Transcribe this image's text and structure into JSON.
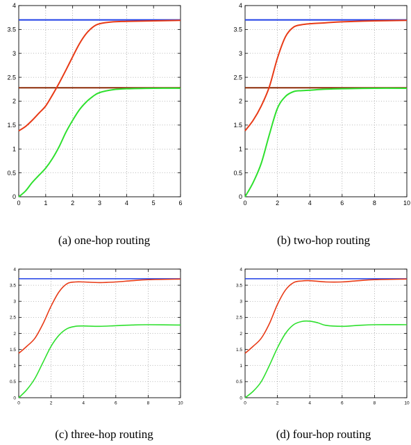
{
  "figure": {
    "captions": [
      "(a)  one-hop routing",
      "(b)  two-hop routing",
      "(c)  three-hop routing",
      "(d)  four-hop routing"
    ]
  },
  "colors": {
    "blue": "#1f3fe6",
    "red": "#e83a16",
    "green": "#2ee02e",
    "darkred": "#8b2a06"
  },
  "chart_data": [
    {
      "type": "line",
      "xlim": [
        0,
        6
      ],
      "ylim": [
        0,
        4
      ],
      "xticks": [
        "0",
        "1",
        "2",
        "3",
        "4",
        "5",
        "6"
      ],
      "yticks": [
        "0",
        "0.5",
        "1",
        "1.5",
        "2",
        "2.5",
        "3",
        "3.5",
        "4"
      ],
      "grid": true,
      "series": [
        {
          "color": "#1f3fe6",
          "x": [
            0,
            6
          ],
          "y": [
            3.7,
            3.7
          ]
        },
        {
          "color": "#8b2a06",
          "x": [
            0,
            6
          ],
          "y": [
            2.28,
            2.28
          ]
        },
        {
          "color": "#e83a16",
          "x": [
            0,
            0.25,
            0.5,
            0.75,
            1,
            1.25,
            1.5,
            1.75,
            2,
            2.25,
            2.5,
            2.75,
            3,
            3.5,
            4,
            5,
            6
          ],
          "y": [
            1.38,
            1.47,
            1.6,
            1.75,
            1.9,
            2.13,
            2.38,
            2.65,
            2.93,
            3.2,
            3.41,
            3.55,
            3.62,
            3.66,
            3.67,
            3.68,
            3.69
          ]
        },
        {
          "color": "#2ee02e",
          "x": [
            0,
            0.25,
            0.5,
            0.75,
            1,
            1.25,
            1.5,
            1.75,
            2,
            2.25,
            2.5,
            2.75,
            3,
            3.5,
            4,
            5,
            6
          ],
          "y": [
            0,
            0.12,
            0.3,
            0.45,
            0.6,
            0.8,
            1.05,
            1.35,
            1.6,
            1.82,
            1.98,
            2.1,
            2.18,
            2.24,
            2.26,
            2.27,
            2.27
          ]
        }
      ]
    },
    {
      "type": "line",
      "xlim": [
        0,
        10
      ],
      "ylim": [
        0,
        4
      ],
      "xticks": [
        "0",
        "2",
        "4",
        "6",
        "8",
        "10"
      ],
      "yticks": [
        "0",
        "0.5",
        "1",
        "1.5",
        "2",
        "2.5",
        "3",
        "3.5",
        "4"
      ],
      "grid": true,
      "series": [
        {
          "color": "#1f3fe6",
          "x": [
            0,
            10
          ],
          "y": [
            3.7,
            3.7
          ]
        },
        {
          "color": "#8b2a06",
          "x": [
            0,
            10
          ],
          "y": [
            2.28,
            2.28
          ]
        },
        {
          "color": "#e83a16",
          "x": [
            0,
            0.5,
            1,
            1.5,
            2,
            2.5,
            3,
            3.5,
            4,
            5,
            6,
            8,
            10
          ],
          "y": [
            1.38,
            1.6,
            1.9,
            2.3,
            2.9,
            3.35,
            3.55,
            3.6,
            3.62,
            3.64,
            3.66,
            3.68,
            3.69
          ]
        },
        {
          "color": "#2ee02e",
          "x": [
            0,
            0.5,
            1,
            1.5,
            2,
            2.5,
            3,
            3.5,
            4,
            5,
            6,
            8,
            10
          ],
          "y": [
            0,
            0.3,
            0.7,
            1.3,
            1.85,
            2.1,
            2.2,
            2.22,
            2.23,
            2.25,
            2.26,
            2.27,
            2.27
          ]
        }
      ]
    },
    {
      "type": "line",
      "xlim": [
        0,
        10
      ],
      "ylim": [
        0,
        4
      ],
      "xticks": [
        "0",
        "2",
        "4",
        "6",
        "8",
        "10"
      ],
      "yticks": [
        "0",
        "0.5",
        "1",
        "1.5",
        "2",
        "2.5",
        "3",
        "3.5",
        "4"
      ],
      "grid": true,
      "series": [
        {
          "color": "#1f3fe6",
          "x": [
            0,
            10
          ],
          "y": [
            3.7,
            3.7
          ]
        },
        {
          "color": "#e83a16",
          "x": [
            0,
            0.5,
            1,
            1.5,
            2,
            2.5,
            3,
            3.5,
            4,
            5,
            6,
            7,
            8,
            10
          ],
          "y": [
            1.38,
            1.6,
            1.85,
            2.3,
            2.85,
            3.3,
            3.55,
            3.6,
            3.6,
            3.58,
            3.6,
            3.64,
            3.67,
            3.69
          ]
        },
        {
          "color": "#2ee02e",
          "x": [
            0,
            0.5,
            1,
            1.5,
            2,
            2.5,
            3,
            3.5,
            4,
            5,
            6,
            7,
            8,
            10
          ],
          "y": [
            0,
            0.25,
            0.6,
            1.1,
            1.6,
            1.95,
            2.15,
            2.22,
            2.23,
            2.22,
            2.24,
            2.26,
            2.27,
            2.26
          ]
        }
      ]
    },
    {
      "type": "line",
      "xlim": [
        0,
        10
      ],
      "ylim": [
        0,
        4
      ],
      "xticks": [
        "0",
        "2",
        "4",
        "6",
        "8",
        "10"
      ],
      "yticks": [
        "0",
        "0.5",
        "1",
        "1.5",
        "2",
        "2.5",
        "3",
        "3.5",
        "4"
      ],
      "grid": true,
      "series": [
        {
          "color": "#1f3fe6",
          "x": [
            0,
            10
          ],
          "y": [
            3.7,
            3.7
          ]
        },
        {
          "color": "#e83a16",
          "x": [
            0,
            0.5,
            1,
            1.5,
            2,
            2.5,
            3,
            3.5,
            4,
            5,
            6,
            7,
            8,
            10
          ],
          "y": [
            1.38,
            1.6,
            1.85,
            2.3,
            2.9,
            3.35,
            3.58,
            3.63,
            3.64,
            3.6,
            3.6,
            3.64,
            3.67,
            3.69
          ]
        },
        {
          "color": "#2ee02e",
          "x": [
            0,
            0.5,
            1,
            1.5,
            2,
            2.5,
            3,
            3.5,
            4,
            4.5,
            5,
            6,
            7,
            8,
            10
          ],
          "y": [
            0,
            0.2,
            0.5,
            1.0,
            1.55,
            2.0,
            2.27,
            2.37,
            2.38,
            2.33,
            2.25,
            2.22,
            2.25,
            2.27,
            2.27
          ]
        }
      ]
    }
  ]
}
